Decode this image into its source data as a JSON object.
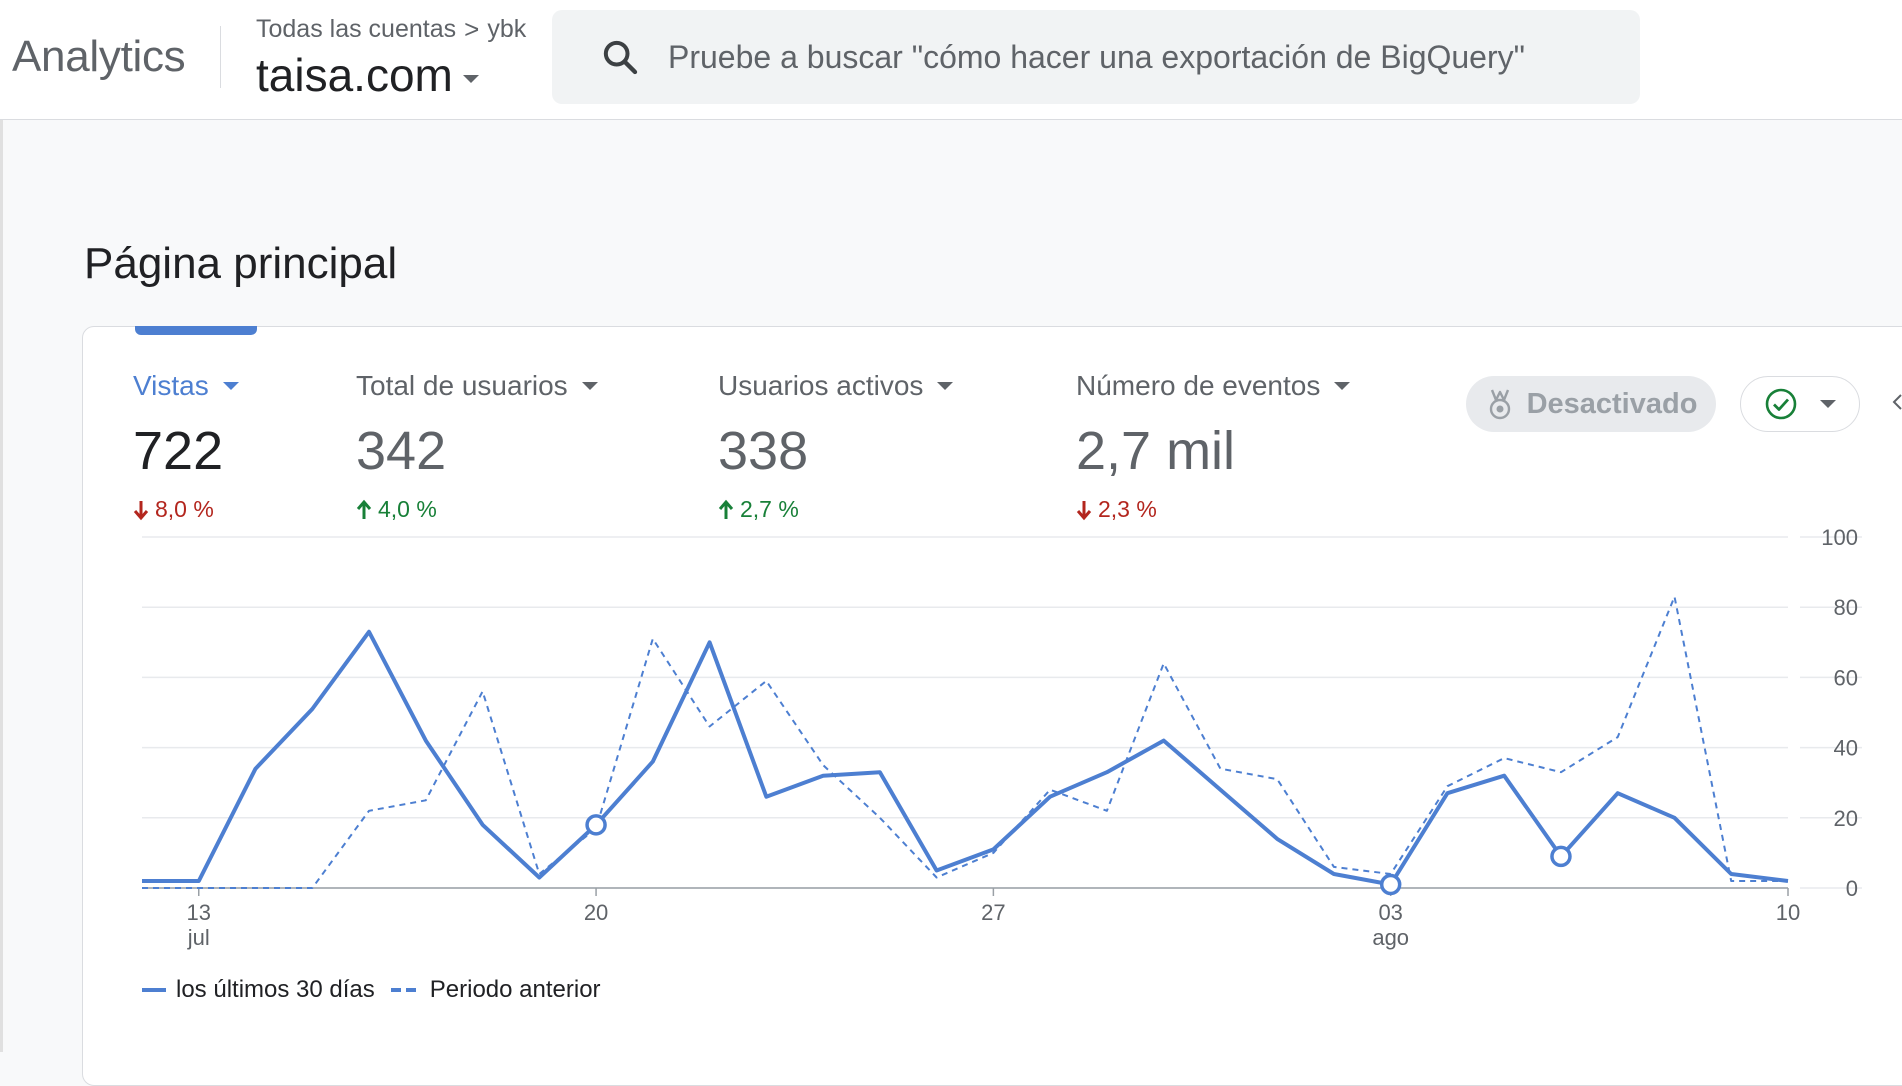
{
  "header": {
    "app_title": "Analytics",
    "breadcrumb": {
      "root": "Todas las cuentas",
      "separator": ">",
      "account": "ybk"
    },
    "property": "taisa.com",
    "search_placeholder": "Pruebe a buscar \"cómo hacer una exportación de BigQuery\""
  },
  "page_title": "Página principal",
  "metrics": [
    {
      "label": "Vistas",
      "value": "722",
      "change": "8,0 %",
      "direction": "down",
      "active": true
    },
    {
      "label": "Total de usuarios",
      "value": "342",
      "change": "4,0 %",
      "direction": "up",
      "active": false
    },
    {
      "label": "Usuarios activos",
      "value": "338",
      "change": "2,7 %",
      "direction": "up",
      "active": false
    },
    {
      "label": "Número de eventos",
      "value": "2,7 mil",
      "change": "2,3 %",
      "direction": "down",
      "active": false
    }
  ],
  "buttons": {
    "disabled_label": "Desactivado",
    "disabled_icon": "insights-badge-icon",
    "status_icon": "check-circle-icon"
  },
  "colors": {
    "accent": "#4d7fd1",
    "down": "#b3261e",
    "up": "#188038",
    "check": "#188038"
  },
  "chart_data": {
    "type": "line",
    "y_ticks": [
      "0",
      "20",
      "40",
      "60",
      "80",
      "100"
    ],
    "ylim": [
      0,
      100
    ],
    "x_ticks": [
      {
        "index": 1,
        "label": "13",
        "sublabel": "jul"
      },
      {
        "index": 8,
        "label": "20",
        "sublabel": ""
      },
      {
        "index": 15,
        "label": "27",
        "sublabel": ""
      },
      {
        "index": 22,
        "label": "03",
        "sublabel": "ago"
      },
      {
        "index": 29,
        "label": "10",
        "sublabel": ""
      }
    ],
    "series": [
      {
        "name": "los últimos 30 días",
        "style": "solid",
        "values": [
          2,
          2,
          34,
          51,
          73,
          42,
          18,
          3,
          18,
          36,
          70,
          26,
          32,
          33,
          5,
          11,
          26,
          33,
          42,
          28,
          14,
          4,
          1,
          27,
          32,
          9,
          27,
          20,
          4,
          2
        ],
        "markers": [
          8,
          22,
          25
        ]
      },
      {
        "name": "Periodo anterior",
        "style": "dashed",
        "values": [
          0,
          0,
          0,
          0,
          22,
          25,
          56,
          4,
          17,
          71,
          46,
          59,
          35,
          20,
          3,
          10,
          28,
          22,
          64,
          34,
          31,
          6,
          4,
          29,
          37,
          33,
          43,
          83,
          2,
          2
        ]
      }
    ]
  }
}
